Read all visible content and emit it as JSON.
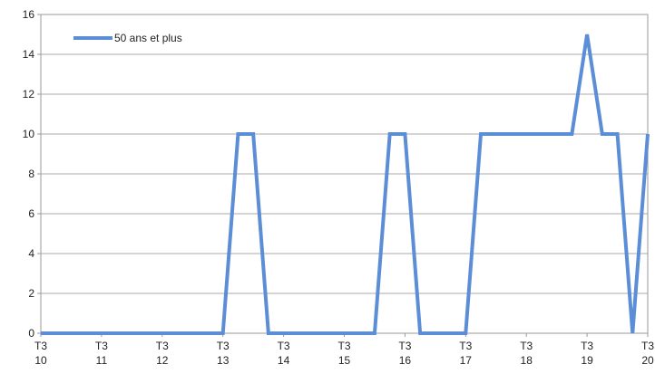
{
  "chart_data": {
    "type": "line",
    "title": "",
    "xlabel": "",
    "ylabel": "",
    "ylim": [
      0,
      16
    ],
    "yticks": [
      "0",
      "2",
      "4",
      "6",
      "8",
      "10",
      "12",
      "14",
      "16"
    ],
    "grid": true,
    "legend_position": "top-left",
    "x_ticks": [
      {
        "line1": "T3",
        "line2": "10"
      },
      {
        "line1": "T3",
        "line2": "11"
      },
      {
        "line1": "T3",
        "line2": "12"
      },
      {
        "line1": "T3",
        "line2": "13"
      },
      {
        "line1": "T3",
        "line2": "14"
      },
      {
        "line1": "T3",
        "line2": "15"
      },
      {
        "line1": "T3",
        "line2": "16"
      },
      {
        "line1": "T3",
        "line2": "17"
      },
      {
        "line1": "T3",
        "line2": "18"
      },
      {
        "line1": "T3",
        "line2": "19"
      },
      {
        "line1": "T3",
        "line2": "20"
      }
    ],
    "series": [
      {
        "name": "50 ans et plus",
        "color": "#5b8ed6",
        "values": [
          0,
          0,
          0,
          0,
          0,
          0,
          0,
          0,
          0,
          0,
          0,
          0,
          0,
          10,
          10,
          0,
          0,
          0,
          0,
          0,
          0,
          0,
          0,
          10,
          10,
          0,
          0,
          0,
          0,
          10,
          10,
          10,
          10,
          10,
          10,
          10,
          15,
          10,
          10,
          0,
          10
        ]
      }
    ]
  }
}
